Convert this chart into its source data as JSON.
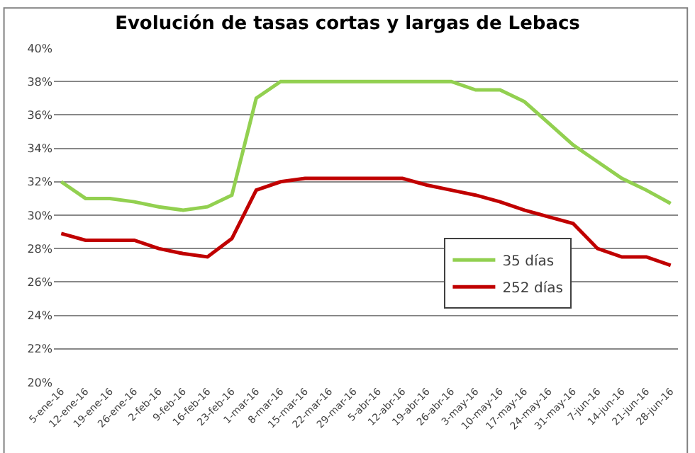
{
  "chart_data": {
    "type": "line",
    "title": "Evolución de tasas cortas y largas de Lebacs",
    "categories": [
      "5-ene-16",
      "12-ene-16",
      "19-ene-16",
      "26-ene-16",
      "2-feb-16",
      "9-feb-16",
      "16-feb-16",
      "23-feb-16",
      "1-mar-16",
      "8-mar-16",
      "15-mar-16",
      "22-mar-16",
      "29-mar-16",
      "5-abr-16",
      "12-abr-16",
      "19-abr-16",
      "26-abr-16",
      "3-may-16",
      "10-may-16",
      "17-may-16",
      "24-may-16",
      "31-may-16",
      "7-jun-16",
      "14-jun-16",
      "21-jun-16",
      "28-jun-16"
    ],
    "series": [
      {
        "name": "35 días",
        "color": "#92d050",
        "values": [
          32,
          31,
          31,
          30.8,
          30.5,
          30.3,
          30.5,
          31.2,
          37,
          38,
          38,
          38,
          38,
          38,
          38,
          38,
          38,
          37.5,
          37.5,
          36.8,
          35.5,
          34.2,
          33.2,
          32.2,
          31.5,
          30.7
        ]
      },
      {
        "name": "252 días",
        "color": "#c00000",
        "values": [
          28.9,
          28.5,
          28.5,
          28.5,
          28,
          27.7,
          27.5,
          28.6,
          31.5,
          32,
          32.2,
          32.2,
          32.2,
          32.2,
          32.2,
          31.8,
          31.5,
          31.2,
          30.8,
          30.3,
          29.9,
          29.5,
          28,
          27.5,
          27.5,
          27
        ]
      }
    ],
    "ylim": [
      20,
      40
    ],
    "yticks": [
      {
        "value": 20,
        "label": "20%"
      },
      {
        "value": 22,
        "label": "22%"
      },
      {
        "value": 24,
        "label": "24%"
      },
      {
        "value": 26,
        "label": "26%"
      },
      {
        "value": 28,
        "label": "28%"
      },
      {
        "value": 30,
        "label": "30%"
      },
      {
        "value": 32,
        "label": "32%"
      },
      {
        "value": 34,
        "label": "34%"
      },
      {
        "value": 36,
        "label": "36%"
      },
      {
        "value": 38,
        "label": "38%"
      },
      {
        "value": 40,
        "label": "40%"
      }
    ],
    "grid": "y",
    "legend": "bottom right",
    "marker": "none",
    "line_style": "solid"
  }
}
